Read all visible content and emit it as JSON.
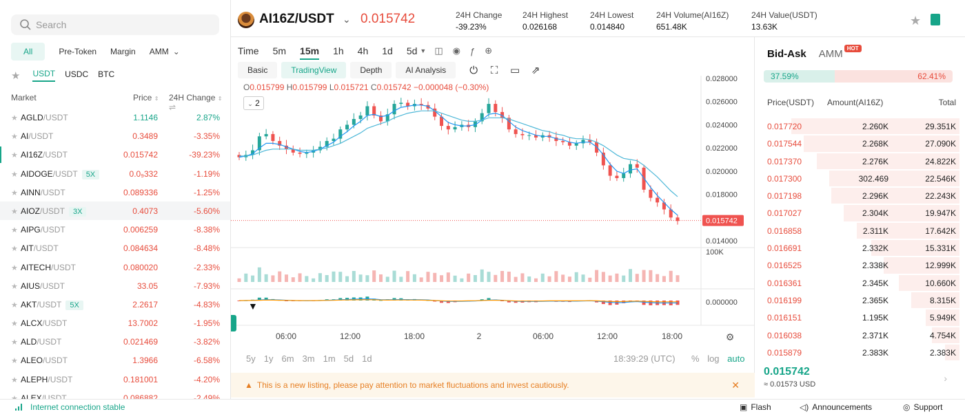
{
  "search": {
    "placeholder": "Search"
  },
  "categories": [
    {
      "label": "All",
      "active": true
    },
    {
      "label": "Pre-Token",
      "active": false
    },
    {
      "label": "Margin",
      "active": false
    },
    {
      "label": "AMM",
      "active": false,
      "dropdown": true
    }
  ],
  "quote_tabs": [
    {
      "label": "USDT",
      "active": true
    },
    {
      "label": "USDC",
      "active": false
    },
    {
      "label": "BTC",
      "active": false
    }
  ],
  "market_header": {
    "market": "Market",
    "price": "Price",
    "change": "24H Change"
  },
  "markets": [
    {
      "base": "AGLD",
      "quote": "/USDT",
      "lev": "",
      "price": "1.1146",
      "change": "2.87%",
      "up": true
    },
    {
      "base": "AI",
      "quote": "/USDT",
      "lev": "",
      "price": "0.3489",
      "change": "-3.35%",
      "up": false
    },
    {
      "base": "AI16Z",
      "quote": "/USDT",
      "lev": "",
      "price": "0.015742",
      "change": "-39.23%",
      "up": false,
      "current": true
    },
    {
      "base": "AIDOGE",
      "quote": "/USDT",
      "lev": "5X",
      "price": "0.0₉332",
      "change": "-1.19%",
      "up": false
    },
    {
      "base": "AINN",
      "quote": "/USDT",
      "lev": "",
      "price": "0.089336",
      "change": "-1.25%",
      "up": false
    },
    {
      "base": "AIOZ",
      "quote": "/USDT",
      "lev": "3X",
      "price": "0.4073",
      "change": "-5.60%",
      "up": false,
      "selected": true
    },
    {
      "base": "AIPG",
      "quote": "/USDT",
      "lev": "",
      "price": "0.006259",
      "change": "-8.38%",
      "up": false
    },
    {
      "base": "AIT",
      "quote": "/USDT",
      "lev": "",
      "price": "0.084634",
      "change": "-8.48%",
      "up": false
    },
    {
      "base": "AITECH",
      "quote": "/USDT",
      "lev": "",
      "price": "0.080020",
      "change": "-2.33%",
      "up": false
    },
    {
      "base": "AIUS",
      "quote": "/USDT",
      "lev": "",
      "price": "33.05",
      "change": "-7.93%",
      "up": false
    },
    {
      "base": "AKT",
      "quote": "/USDT",
      "lev": "5X",
      "price": "2.2617",
      "change": "-4.83%",
      "up": false
    },
    {
      "base": "ALCX",
      "quote": "/USDT",
      "lev": "",
      "price": "13.7002",
      "change": "-1.95%",
      "up": false
    },
    {
      "base": "ALD",
      "quote": "/USDT",
      "lev": "",
      "price": "0.021469",
      "change": "-3.82%",
      "up": false
    },
    {
      "base": "ALEO",
      "quote": "/USDT",
      "lev": "",
      "price": "1.3966",
      "change": "-6.58%",
      "up": false
    },
    {
      "base": "ALEPH",
      "quote": "/USDT",
      "lev": "",
      "price": "0.181001",
      "change": "-4.20%",
      "up": false
    },
    {
      "base": "ALEX",
      "quote": "/USDT",
      "lev": "",
      "price": "0.086882",
      "change": "-2.49%",
      "up": false
    }
  ],
  "header": {
    "pair": "AI16Z/USDT",
    "last_price": "0.015742",
    "stats": [
      {
        "label": "24H Change",
        "value": "-39.23%",
        "red": true
      },
      {
        "label": "24H Highest",
        "value": "0.026168",
        "red": false
      },
      {
        "label": "24H Lowest",
        "value": "0.014840",
        "red": false
      },
      {
        "label": "24H Volume(AI16Z)",
        "value": "651.48K",
        "red": false
      },
      {
        "label": "24H Value(USDT)",
        "value": "13.63K",
        "red": false
      }
    ]
  },
  "intervals": [
    {
      "label": "Time",
      "active": false
    },
    {
      "label": "5m",
      "active": false
    },
    {
      "label": "15m",
      "active": true
    },
    {
      "label": "1h",
      "active": false
    },
    {
      "label": "4h",
      "active": false
    },
    {
      "label": "1d",
      "active": false
    },
    {
      "label": "5d",
      "active": false
    }
  ],
  "views": [
    {
      "label": "Basic",
      "active": false
    },
    {
      "label": "TradingView",
      "active": true
    },
    {
      "label": "Depth",
      "active": false
    },
    {
      "label": "AI Analysis",
      "active": false
    }
  ],
  "ohlc": {
    "o": "0.015799",
    "h": "0.015799",
    "l": "0.015721",
    "c": "0.015742",
    "chg": "−0.000048 (−0.30%)"
  },
  "indicator_count": "2",
  "chart_data": {
    "type": "line",
    "title": "",
    "price_ticks": [
      "0.028000",
      "0.026000",
      "0.024000",
      "0.022000",
      "0.020000",
      "0.018000",
      "0.016000",
      "0.014000"
    ],
    "price_range": [
      0.014,
      0.028
    ],
    "time_ticks": [
      "06:00",
      "12:00",
      "18:00",
      "2",
      "06:00",
      "12:00",
      "18:00"
    ],
    "volume_tick": "100K",
    "macd_tick": "0.000000",
    "current_price_label": "0.015742",
    "close": [
      0.0212,
      0.0214,
      0.0218,
      0.023,
      0.0232,
      0.0226,
      0.0222,
      0.0219,
      0.0216,
      0.0215,
      0.0216,
      0.0218,
      0.0221,
      0.0226,
      0.0228,
      0.0236,
      0.024,
      0.0245,
      0.0248,
      0.0256,
      0.0248,
      0.0243,
      0.0249,
      0.0258,
      0.0259,
      0.0256,
      0.0258,
      0.0257,
      0.0254,
      0.0247,
      0.0239,
      0.0236,
      0.0238,
      0.024,
      0.0238,
      0.0243,
      0.025,
      0.0258,
      0.0251,
      0.0246,
      0.0236,
      0.0232,
      0.0231,
      0.0231,
      0.0229,
      0.0231,
      0.0229,
      0.0226,
      0.0225,
      0.0222,
      0.0224,
      0.0227,
      0.0225,
      0.0216,
      0.0205,
      0.0196,
      0.0194,
      0.0198,
      0.0206,
      0.0203,
      0.0184,
      0.0177,
      0.0173,
      0.0167,
      0.016,
      0.0157
    ],
    "ma_fast": [
      0.0212,
      0.0213,
      0.0215,
      0.022,
      0.0224,
      0.0224,
      0.0223,
      0.0221,
      0.0219,
      0.0217,
      0.0216,
      0.0217,
      0.0219,
      0.0222,
      0.0225,
      0.023,
      0.0234,
      0.0239,
      0.0243,
      0.0248,
      0.0249,
      0.0247,
      0.0248,
      0.0252,
      0.0255,
      0.0256,
      0.0257,
      0.0257,
      0.0256,
      0.0252,
      0.0247,
      0.0242,
      0.024,
      0.0239,
      0.0239,
      0.024,
      0.0244,
      0.0249,
      0.025,
      0.0248,
      0.0243,
      0.0238,
      0.0235,
      0.0233,
      0.0231,
      0.023,
      0.023,
      0.0228,
      0.0227,
      0.0225,
      0.0224,
      0.0225,
      0.0225,
      0.0221,
      0.0214,
      0.0206,
      0.02,
      0.0198,
      0.0201,
      0.0202,
      0.0194,
      0.0186,
      0.0179,
      0.0173,
      0.0167,
      0.0162
    ],
    "ma_slow": [
      0.0213,
      0.0213,
      0.0214,
      0.0216,
      0.0218,
      0.0219,
      0.0219,
      0.0219,
      0.0219,
      0.0218,
      0.0218,
      0.0218,
      0.0219,
      0.022,
      0.0222,
      0.0224,
      0.0227,
      0.023,
      0.0233,
      0.0237,
      0.0239,
      0.0241,
      0.0243,
      0.0246,
      0.0248,
      0.025,
      0.0251,
      0.0252,
      0.0252,
      0.0252,
      0.025,
      0.0248,
      0.0246,
      0.0244,
      0.0243,
      0.0243,
      0.0244,
      0.0246,
      0.0246,
      0.0246,
      0.0245,
      0.0243,
      0.0241,
      0.0239,
      0.0237,
      0.0235,
      0.0234,
      0.0232,
      0.0231,
      0.0229,
      0.0228,
      0.0228,
      0.0227,
      0.0225,
      0.0222,
      0.0218,
      0.0214,
      0.0211,
      0.021,
      0.0209,
      0.0205,
      0.02,
      0.0195,
      0.0189,
      0.0183,
      0.0178
    ]
  },
  "ranges": [
    "5y",
    "1y",
    "6m",
    "3m",
    "1m",
    "5d",
    "1d"
  ],
  "time_readout": "18:39:29 (UTC)",
  "scale_opts": {
    "pct": "%",
    "log": "log",
    "auto": "auto"
  },
  "notice": {
    "text": "This is a new listing, please pay attention to market fluctuations and invest cautiously."
  },
  "book": {
    "tabs": [
      "Bid-Ask",
      "AMM"
    ],
    "hot": "HOT",
    "buy_pct": "37.59%",
    "sell_pct": "62.41%",
    "buy_ratio": 0.3759,
    "head": {
      "price": "Price(USDT)",
      "amount": "Amount(AI16Z)",
      "total": "Total"
    },
    "asks": [
      {
        "p": "0.017720",
        "a": "2.260K",
        "t": "29.351K",
        "depth": 0.8
      },
      {
        "p": "0.017544",
        "a": "2.268K",
        "t": "27.090K",
        "depth": 0.74
      },
      {
        "p": "0.017370",
        "a": "2.276K",
        "t": "24.822K",
        "depth": 0.68
      },
      {
        "p": "0.017300",
        "a": "302.469",
        "t": "22.546K",
        "depth": 0.62
      },
      {
        "p": "0.017198",
        "a": "2.296K",
        "t": "22.243K",
        "depth": 0.61
      },
      {
        "p": "0.017027",
        "a": "2.304K",
        "t": "19.947K",
        "depth": 0.55
      },
      {
        "p": "0.016858",
        "a": "2.311K",
        "t": "17.642K",
        "depth": 0.49
      },
      {
        "p": "0.016691",
        "a": "2.332K",
        "t": "15.331K",
        "depth": 0.42
      },
      {
        "p": "0.016525",
        "a": "2.338K",
        "t": "12.999K",
        "depth": 0.36
      },
      {
        "p": "0.016361",
        "a": "2.345K",
        "t": "10.660K",
        "depth": 0.29
      },
      {
        "p": "0.016199",
        "a": "2.365K",
        "t": "8.315K",
        "depth": 0.23
      },
      {
        "p": "0.016151",
        "a": "1.195K",
        "t": "5.949K",
        "depth": 0.16
      },
      {
        "p": "0.016038",
        "a": "2.371K",
        "t": "4.754K",
        "depth": 0.13
      },
      {
        "p": "0.015879",
        "a": "2.383K",
        "t": "2.383K",
        "depth": 0.07
      }
    ],
    "last": "0.015742",
    "last_usd": "≈ 0.01573  USD"
  },
  "status": {
    "connection": "Internet connection stable",
    "flash": "Flash",
    "announcements": "Announcements",
    "support": "Support"
  }
}
